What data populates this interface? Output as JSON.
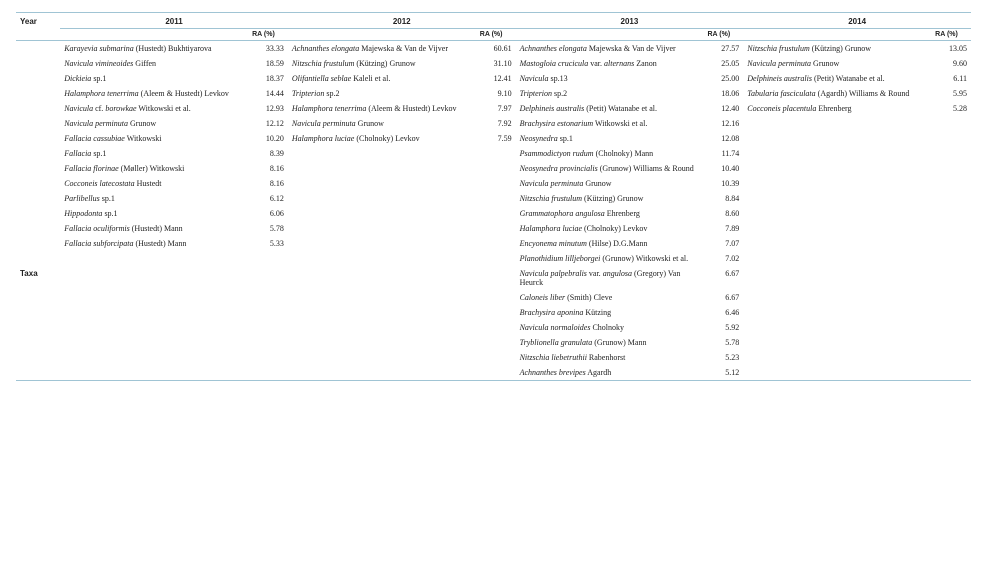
{
  "header": {
    "year_label": "Year",
    "years": [
      "2011",
      "2012",
      "2013",
      "2014"
    ],
    "ra_label": "RA (%)",
    "side_label": "Taxa"
  },
  "colors": {
    "rule": "#a0c4d4",
    "text": "#222222",
    "background": "#ffffff"
  },
  "columns": {
    "2011": [
      {
        "name_it": "Karayevia submarina",
        "auth": " (Hustedt) Bukhtiyarova",
        "ra": "33.33"
      },
      {
        "name_it": "Navicula vimineoides",
        "auth": " Giffen",
        "ra": "18.59"
      },
      {
        "name_it": "Dickieia",
        "auth": " sp.1",
        "ra": "18.37"
      },
      {
        "name_it": "Halamphora tenerrima",
        "auth": " (Aleem & Hustedt) Levkov",
        "ra": "14.44"
      },
      {
        "name_it": "Navicula",
        "auth": " cf. ",
        "name_it2": "borowkae",
        "auth2": " Witkowski et al.",
        "ra": "12.93"
      },
      {
        "name_it": "Navicula perminuta",
        "auth": " Grunow",
        "ra": "12.12"
      },
      {
        "name_it": "Fallacia cassubiae",
        "auth": " Witkowski",
        "ra": "10.20"
      },
      {
        "name_it": "Fallacia",
        "auth": " sp.1",
        "ra": "8.39"
      },
      {
        "name_it": "Fallacia florinae",
        "auth": " (Møller) Witkowski",
        "ra": "8.16"
      },
      {
        "name_it": "Cocconeis latecostata",
        "auth": " Hustedt",
        "ra": "8.16"
      },
      {
        "name_it": "Parlibellus",
        "auth": " sp.1",
        "ra": "6.12"
      },
      {
        "name_it": "Hippodonta",
        "auth": " sp.1",
        "ra": "6.06"
      },
      {
        "name_it": "Fallacia oculiformis",
        "auth": " (Hustedt) Mann",
        "ra": "5.78"
      },
      {
        "name_it": "Fallacia subforcipata",
        "auth": " (Hustedt) Mann",
        "ra": "5.33"
      }
    ],
    "2012": [
      {
        "name_it": "Achnanthes elongata",
        "auth": " Majewska & Van de Vijver",
        "ra": "60.61"
      },
      {
        "name_it": "Nitzschia frustulum",
        "auth": " (Kützing) Grunow",
        "ra": "31.10"
      },
      {
        "name_it": "Olifantiella seblae",
        "auth": " Kaleli et al.",
        "ra": "12.41"
      },
      {
        "name_it": "Tripterion",
        "auth": " sp.2",
        "ra": "9.10"
      },
      {
        "name_it": "Halamphora tenerrima",
        "auth": " (Aleem & Hustedt) Levkov",
        "ra": "7.97"
      },
      {
        "name_it": "Navicula perminuta",
        "auth": " Grunow",
        "ra": "7.92"
      },
      {
        "name_it": "Halamphora luciae",
        "auth": " (Cholnoky) Levkov",
        "ra": "7.59"
      }
    ],
    "2013": [
      {
        "name_it": "Achnanthes elongata",
        "auth": " Majewska & Van de Vijver",
        "ra": "27.57"
      },
      {
        "name_it": "Mastogloia crucicula",
        "auth": " var. ",
        "name_it2": "alternans",
        "auth2": " Zanon",
        "ra": "25.05"
      },
      {
        "name_it": "Navicula",
        "auth": " sp.13",
        "ra": "25.00"
      },
      {
        "name_it": "Tripterion",
        "auth": " sp.2",
        "ra": "18.06"
      },
      {
        "name_it": "Delphineis australis",
        "auth": " (Petit) Watanabe et al.",
        "ra": "12.40"
      },
      {
        "name_it": "Brachysira estonarium",
        "auth": " Witkowski et al.",
        "ra": "12.16"
      },
      {
        "name_it": "Neosynedra",
        "auth": " sp.1",
        "ra": "12.08"
      },
      {
        "name_it": "Psammodictyon rudum",
        "auth": " (Cholnoky) Mann",
        "ra": "11.74"
      },
      {
        "name_it": "Neosynedra provincialis",
        "auth": " (Grunow) Williams & Round",
        "ra": "10.40"
      },
      {
        "name_it": "Navicula perminuta",
        "auth": " Grunow",
        "ra": "10.39"
      },
      {
        "name_it": "Nitzschia frustulum",
        "auth": " (Kützing) Grunow",
        "ra": "8.84"
      },
      {
        "name_it": "Grammatophora angulosa",
        "auth": " Ehrenberg",
        "ra": "8.60"
      },
      {
        "name_it": "Halamphora luciae",
        "auth": " (Cholnoky) Levkov",
        "ra": "7.89"
      },
      {
        "name_it": "Encyonema minutum",
        "auth": " (Hilse) D.G.Mann",
        "ra": "7.07"
      },
      {
        "name_it": "Planothidium lilljeborgei",
        "auth": " (Grunow) Witkowski et al.",
        "ra": "7.02"
      },
      {
        "name_it": "Navicula palpebralis",
        "auth": " var. ",
        "name_it2": "angulosa",
        "auth2": " (Gregory) Van Heurck",
        "ra": "6.67"
      },
      {
        "name_it": "Caloneis liber",
        "auth": " (Smith) Cleve",
        "ra": "6.67"
      },
      {
        "name_it": "Brachysira aponina",
        "auth": " Kützing",
        "ra": "6.46"
      },
      {
        "name_it": "Navicula normaloides",
        "auth": " Cholnoky",
        "ra": "5.92"
      },
      {
        "name_it": "Tryblionella granulata",
        "auth": " (Grunow) Mann",
        "ra": "5.78"
      },
      {
        "name_it": "Nitzschia liebetruthii",
        "auth": " Rabenhorst",
        "ra": "5.23"
      },
      {
        "name_it": "Achnanthes brevipes",
        "auth": " Agardh",
        "ra": "5.12"
      }
    ],
    "2014": [
      {
        "name_it": "Nitzschia frustulum",
        "auth": " (Kützing) Grunow",
        "ra": "13.05"
      },
      {
        "name_it": "Navicula perminuta",
        "auth": " Grunow",
        "ra": "9.60"
      },
      {
        "name_it": "Delphineis australis",
        "auth": " (Petit) Watanabe et al.",
        "ra": "6.11"
      },
      {
        "name_it": "Tabularia fasciculata",
        "auth": " (Agardh) Williams & Round",
        "ra": "5.95"
      },
      {
        "name_it": "Cocconeis placentula",
        "auth": " Ehrenberg",
        "ra": "5.28"
      }
    ]
  },
  "layout": {
    "max_rows": 22,
    "taxa_row_index": 15
  }
}
